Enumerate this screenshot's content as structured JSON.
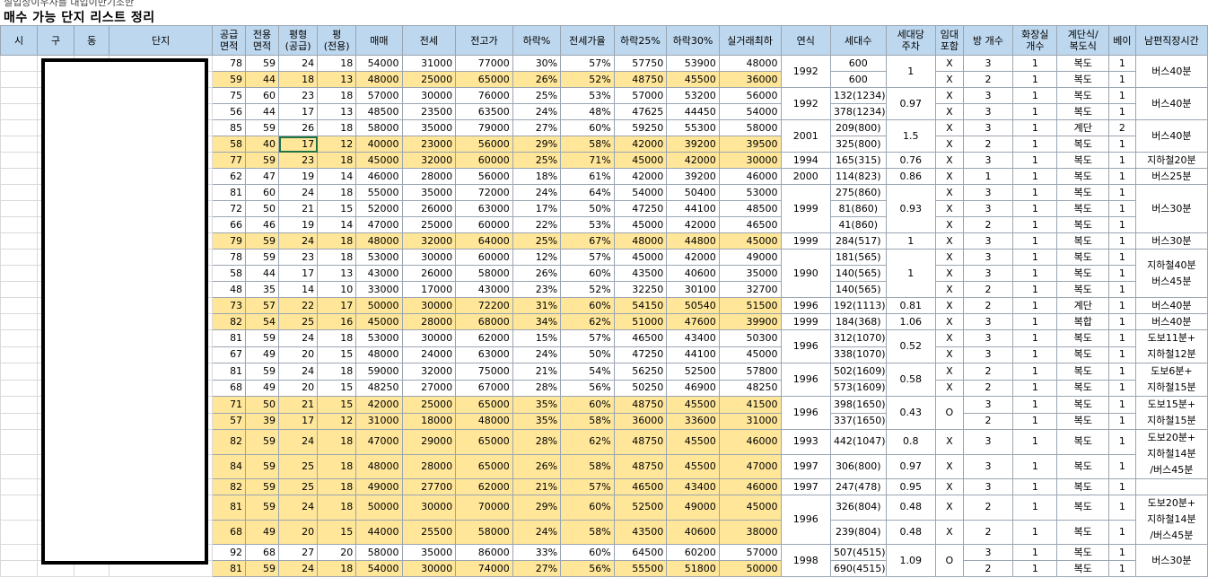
{
  "topline": "실입상이우사를 대입이반기조한",
  "title": "매수 가능 단지 리스트 정리",
  "headers": [
    "시",
    "구",
    "동",
    "단지",
    "공급\n면적",
    "전용\n면적",
    "평형\n(공급)",
    "평\n(전용)",
    "매매",
    "전세",
    "전고가",
    "하락%",
    "전세가율",
    "하락25%",
    "하락30%",
    "실거래최하",
    "연식",
    "세대수",
    "세대당\n주차",
    "임대\n포함",
    "방 개수",
    "화장실\n개수",
    "계단식/\n복도식",
    "베이",
    "남편직장시간"
  ],
  "rows": [
    {
      "hl": false,
      "v": [
        "78",
        "59",
        "24",
        "18",
        "54000",
        "31000",
        "77000",
        "30%",
        "57%",
        "57750",
        "53900",
        "48000"
      ],
      "hh": "600",
      "rooms": "3",
      "bath": "1",
      "type": "복도",
      "bay": "1"
    },
    {
      "hl": true,
      "v": [
        "59",
        "44",
        "18",
        "13",
        "48000",
        "25000",
        "65000",
        "26%",
        "52%",
        "48750",
        "45500",
        "36000"
      ],
      "hh": "600",
      "rooms": "2",
      "bath": "1",
      "type": "복도",
      "bay": "1"
    },
    {
      "hl": false,
      "v": [
        "75",
        "60",
        "23",
        "18",
        "57000",
        "30000",
        "76000",
        "25%",
        "53%",
        "57000",
        "53200",
        "56000"
      ],
      "hh": "132(1234)",
      "rooms": "3",
      "bath": "1",
      "type": "복도",
      "bay": "1"
    },
    {
      "hl": false,
      "v": [
        "56",
        "44",
        "17",
        "13",
        "48500",
        "23500",
        "63500",
        "24%",
        "48%",
        "47625",
        "44450",
        "54000"
      ],
      "hh": "378(1234)",
      "rooms": "3",
      "bath": "1",
      "type": "복도",
      "bay": "1"
    },
    {
      "hl": false,
      "v": [
        "85",
        "59",
        "26",
        "18",
        "58000",
        "35000",
        "79000",
        "27%",
        "60%",
        "59250",
        "55300",
        "58000"
      ],
      "hh": "209(800)",
      "rooms": "3",
      "bath": "1",
      "type": "계단",
      "bay": "2"
    },
    {
      "hl": true,
      "v": [
        "58",
        "40",
        "17",
        "12",
        "40000",
        "23000",
        "56000",
        "29%",
        "58%",
        "42000",
        "39200",
        "39500"
      ],
      "hh": "325(800)",
      "rooms": "2",
      "bath": "1",
      "type": "복도",
      "bay": "1"
    },
    {
      "hl": true,
      "v": [
        "77",
        "59",
        "23",
        "18",
        "45000",
        "32000",
        "60000",
        "25%",
        "71%",
        "45000",
        "42000",
        "30000"
      ],
      "yr": "1994",
      "hh": "165(315)",
      "pk": "0.76",
      "rent": "X",
      "rooms": "3",
      "bath": "1",
      "type": "복도",
      "bay": "1",
      "time": "지하철20분"
    },
    {
      "hl": false,
      "v": [
        "62",
        "47",
        "19",
        "14",
        "46000",
        "28000",
        "56000",
        "18%",
        "61%",
        "42000",
        "39200",
        "46000"
      ],
      "yr": "2000",
      "hh": "114(823)",
      "pk": "0.86",
      "rent": "X",
      "rooms": "1",
      "bath": "1",
      "type": "복도",
      "bay": "1",
      "time": "버스25분"
    },
    {
      "hl": false,
      "v": [
        "81",
        "60",
        "24",
        "18",
        "55000",
        "35000",
        "72000",
        "24%",
        "64%",
        "54000",
        "50400",
        "53000"
      ],
      "hh": "275(860)",
      "rooms": "3",
      "bath": "1",
      "type": "복도",
      "bay": "1"
    },
    {
      "hl": false,
      "v": [
        "72",
        "50",
        "21",
        "15",
        "52000",
        "26000",
        "63000",
        "17%",
        "50%",
        "47250",
        "44100",
        "48500"
      ],
      "hh": "81(860)",
      "rooms": "3",
      "bath": "1",
      "type": "복도",
      "bay": "1"
    },
    {
      "hl": false,
      "v": [
        "66",
        "46",
        "19",
        "14",
        "47000",
        "25000",
        "60000",
        "22%",
        "53%",
        "45000",
        "42000",
        "46500"
      ],
      "hh": "41(860)",
      "rooms": "2",
      "bath": "1",
      "type": "복도",
      "bay": "1"
    },
    {
      "hl": true,
      "v": [
        "79",
        "59",
        "24",
        "18",
        "48000",
        "32000",
        "64000",
        "25%",
        "67%",
        "48000",
        "44800",
        "45000"
      ],
      "yr": "1999",
      "hh": "284(517)",
      "pk": "1",
      "rent": "X",
      "rooms": "3",
      "bath": "1",
      "type": "복도",
      "bay": "1",
      "time": "버스30분"
    },
    {
      "hl": false,
      "v": [
        "78",
        "59",
        "23",
        "18",
        "53000",
        "30000",
        "60000",
        "12%",
        "57%",
        "45000",
        "42000",
        "49000"
      ],
      "hh": "181(565)",
      "rooms": "3",
      "bath": "1",
      "type": "복도",
      "bay": "1"
    },
    {
      "hl": false,
      "v": [
        "58",
        "44",
        "17",
        "13",
        "43000",
        "26000",
        "58000",
        "26%",
        "60%",
        "43500",
        "40600",
        "35000"
      ],
      "hh": "140(565)",
      "rooms": "3",
      "bath": "1",
      "type": "복도",
      "bay": "1"
    },
    {
      "hl": false,
      "v": [
        "48",
        "35",
        "14",
        "10",
        "33000",
        "17000",
        "43000",
        "23%",
        "52%",
        "32250",
        "30100",
        "32700"
      ],
      "hh": "140(565)",
      "rooms": "2",
      "bath": "1",
      "type": "복도",
      "bay": "1"
    },
    {
      "hl": true,
      "v": [
        "73",
        "57",
        "22",
        "17",
        "50000",
        "30000",
        "72200",
        "31%",
        "60%",
        "54150",
        "50540",
        "51500"
      ],
      "yr": "1996",
      "hh": "192(1113)",
      "pk": "0.81",
      "rent": "X",
      "rooms": "2",
      "bath": "1",
      "type": "계단",
      "bay": "1",
      "time": "버스40분"
    },
    {
      "hl": true,
      "v": [
        "82",
        "54",
        "25",
        "16",
        "45000",
        "28000",
        "68000",
        "34%",
        "62%",
        "51000",
        "47600",
        "39900"
      ],
      "yr": "1999",
      "hh": "184(368)",
      "pk": "1.06",
      "rent": "X",
      "rooms": "3",
      "bath": "1",
      "type": "복합",
      "bay": "1",
      "time": "버스40분"
    },
    {
      "hl": false,
      "v": [
        "81",
        "59",
        "24",
        "18",
        "53000",
        "30000",
        "62000",
        "15%",
        "57%",
        "46500",
        "43400",
        "50300"
      ],
      "hh": "312(1070)",
      "rooms": "3",
      "bath": "1",
      "type": "복도",
      "bay": "1"
    },
    {
      "hl": false,
      "v": [
        "67",
        "49",
        "20",
        "15",
        "48000",
        "24000",
        "63000",
        "24%",
        "50%",
        "47250",
        "44100",
        "45000"
      ],
      "hh": "338(1070)",
      "rooms": "3",
      "bath": "1",
      "type": "복도",
      "bay": "1"
    },
    {
      "hl": false,
      "v": [
        "81",
        "59",
        "24",
        "18",
        "59000",
        "32000",
        "75000",
        "21%",
        "54%",
        "56250",
        "52500",
        "57800"
      ],
      "hh": "502(1609)",
      "rooms": "2",
      "bath": "1",
      "type": "복도",
      "bay": "1"
    },
    {
      "hl": false,
      "v": [
        "68",
        "49",
        "20",
        "15",
        "48250",
        "27000",
        "67000",
        "28%",
        "56%",
        "50250",
        "46900",
        "48250"
      ],
      "hh": "573(1609)",
      "rooms": "2",
      "bath": "1",
      "type": "복도",
      "bay": "1"
    },
    {
      "hl": true,
      "v": [
        "71",
        "50",
        "21",
        "15",
        "42000",
        "25000",
        "65000",
        "35%",
        "60%",
        "48750",
        "45500",
        "41500"
      ],
      "hh": "398(1650)",
      "rooms": "3",
      "bath": "1",
      "type": "복도",
      "bay": "1"
    },
    {
      "hl": true,
      "v": [
        "57",
        "39",
        "17",
        "12",
        "31000",
        "18000",
        "48000",
        "35%",
        "58%",
        "36000",
        "33600",
        "31000"
      ],
      "hh": "337(1650)",
      "rooms": "2",
      "bath": "1",
      "type": "복도",
      "bay": "1"
    },
    {
      "hl": true,
      "tall": true,
      "v": [
        "82",
        "59",
        "24",
        "18",
        "47000",
        "29000",
        "65000",
        "28%",
        "62%",
        "48750",
        "45500",
        "46000"
      ],
      "yr": "1993",
      "hh": "442(1047)",
      "pk": "0.8",
      "rent": "X",
      "rooms": "3",
      "bath": "1",
      "type": "복도",
      "bay": "1"
    },
    {
      "hl": true,
      "tall": true,
      "v": [
        "84",
        "59",
        "25",
        "18",
        "48000",
        "28000",
        "65000",
        "26%",
        "58%",
        "48750",
        "45500",
        "47000"
      ],
      "yr": "1997",
      "hh": "306(800)",
      "pk": "0.97",
      "rent": "X",
      "rooms": "3",
      "bath": "1",
      "type": "복도",
      "bay": "1"
    },
    {
      "hl": true,
      "v": [
        "82",
        "59",
        "25",
        "18",
        "49000",
        "27700",
        "62000",
        "21%",
        "57%",
        "46500",
        "43400",
        "46000"
      ],
      "yr": "1997",
      "hh": "247(478)",
      "pk": "0.95",
      "rent": "X",
      "rooms": "3",
      "bath": "1",
      "type": "복도",
      "bay": "1"
    },
    {
      "hl": true,
      "tall": true,
      "v": [
        "81",
        "59",
        "24",
        "18",
        "50000",
        "30000",
        "70000",
        "29%",
        "60%",
        "52500",
        "49000",
        "45000"
      ],
      "hh": "326(804)",
      "pk": "0.48",
      "rent": "X",
      "rooms": "2",
      "bath": "1",
      "type": "복도",
      "bay": "1"
    },
    {
      "hl": true,
      "tall": true,
      "v": [
        "68",
        "49",
        "20",
        "15",
        "44000",
        "25500",
        "58000",
        "24%",
        "58%",
        "43500",
        "40600",
        "38000"
      ],
      "hh": "239(804)",
      "pk": "0.48",
      "rent": "X",
      "rooms": "2",
      "bath": "1",
      "type": "복도",
      "bay": "1"
    },
    {
      "hl": false,
      "v": [
        "92",
        "68",
        "27",
        "20",
        "58000",
        "35000",
        "86000",
        "33%",
        "60%",
        "64500",
        "60200",
        "57000"
      ],
      "hh": "507(4515)",
      "rooms": "3",
      "bath": "1",
      "type": "복도",
      "bay": "1"
    },
    {
      "hl": true,
      "v": [
        "81",
        "59",
        "24",
        "18",
        "54000",
        "30000",
        "74000",
        "27%",
        "56%",
        "55500",
        "51800",
        "50000"
      ],
      "hh": "690(4515)",
      "rooms": "2",
      "bath": "1",
      "type": "복도",
      "bay": "1"
    }
  ],
  "merged": {
    "g0": {
      "yr": "1992",
      "pk": "1",
      "rent": [
        "X",
        "X"
      ],
      "time": "버스40분"
    },
    "g1": {
      "yr": "1992",
      "pk": "0.97",
      "rent": [
        "X",
        "X"
      ],
      "time": "버스40분"
    },
    "g2": {
      "yr": "2001",
      "pk": "1.5",
      "rent": [
        "X",
        "X"
      ],
      "time": "버스40분"
    },
    "g3": {
      "yr": "1999",
      "pk": "0.93",
      "rent": [
        "X",
        "X",
        "X"
      ],
      "time": "버스30분"
    },
    "g4": {
      "yr": "1990",
      "pk": "1",
      "rent": [
        "X",
        "X",
        "X"
      ],
      "time": "지하철40분\n버스45분"
    },
    "g5": {
      "yr": "1996",
      "pk": "0.52",
      "rent": [
        "X",
        "X"
      ],
      "time": "도보11분+\n지하철12분"
    },
    "g6": {
      "yr": "1996",
      "pk": "0.58",
      "rent": [
        "X",
        "X"
      ],
      "time": "도보6분+\n지하철15분"
    },
    "g7": {
      "yr": "1996",
      "pk": "0.43",
      "rent": "O",
      "time": "도보15분+\n지하철15분"
    },
    "g8": {
      "time": "도보20분+\n지하철14분\n/버스45분"
    },
    "g9": {
      "yr": "1996",
      "time": "도보20분+\n지하철14분\n/버스45분"
    },
    "g10": {
      "yr": "1998",
      "pk": "1.09",
      "rent": "O",
      "time": "버스30분"
    }
  }
}
